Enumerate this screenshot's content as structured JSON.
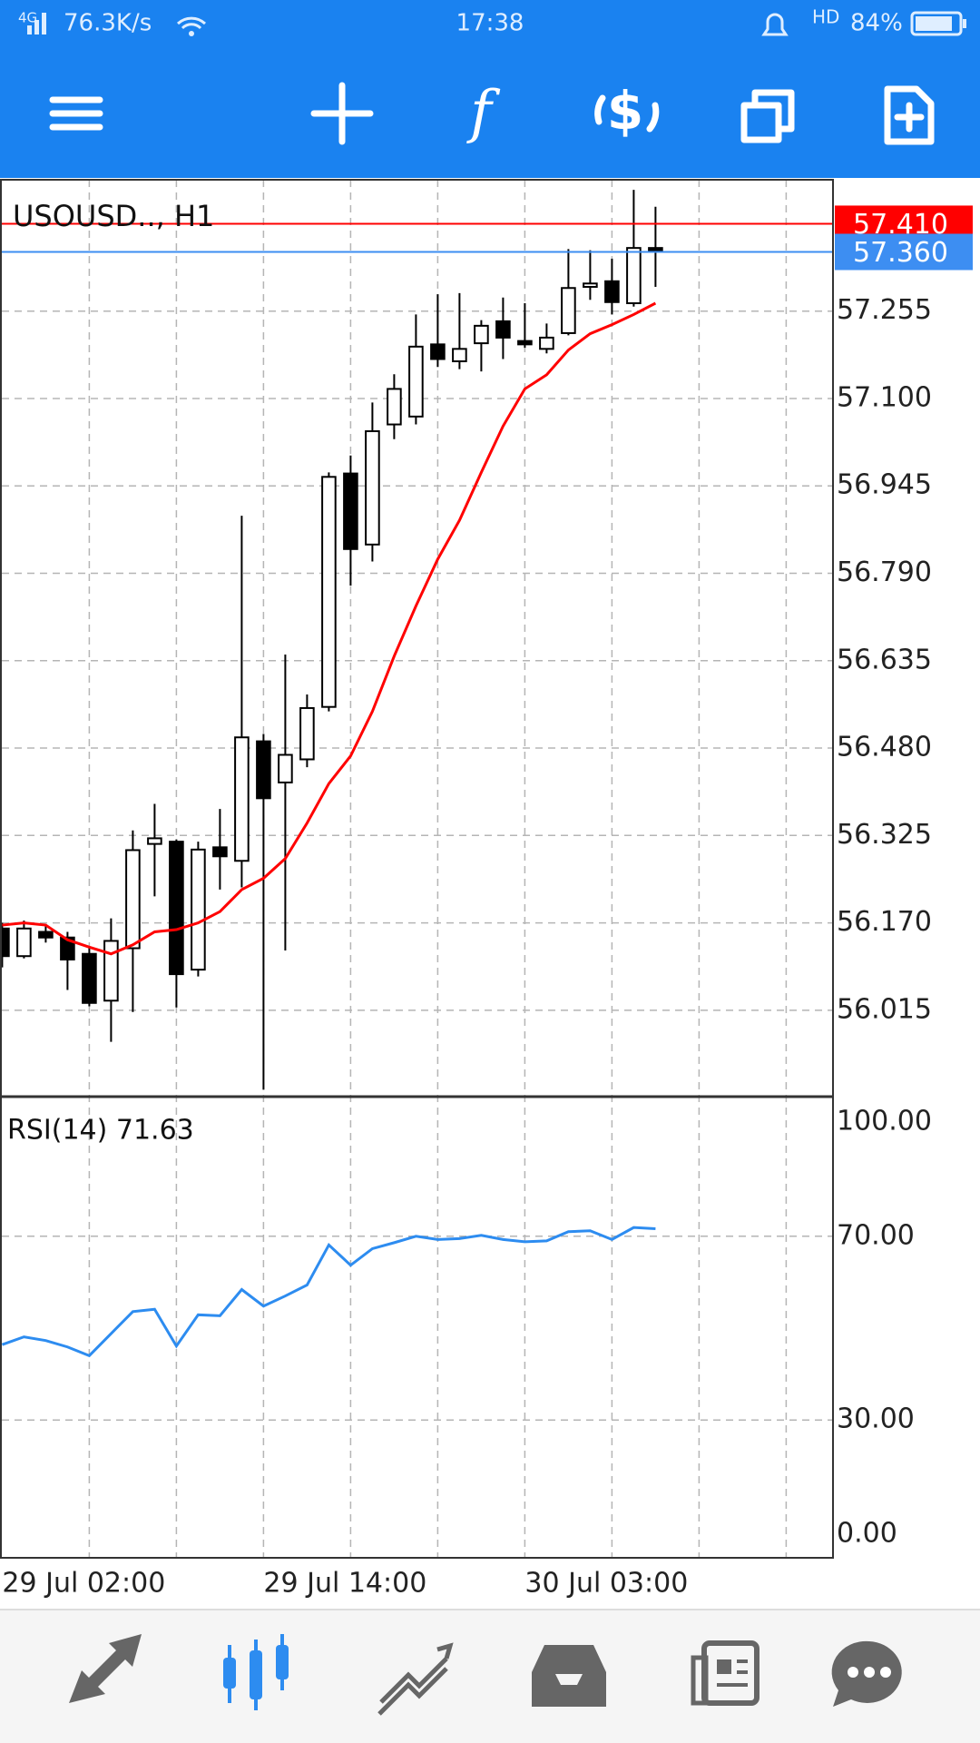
{
  "status_bar": {
    "network": "4G",
    "speed": "76.3K/s",
    "time": "17:38",
    "hd": "HD",
    "battery": "84%"
  },
  "chart_data": [
    {
      "type": "candlestick",
      "title": "USOUSD.., H1",
      "categories": [
        "29 Jul 02:00",
        null,
        null,
        null,
        null,
        null,
        null,
        null,
        null,
        null,
        null,
        null,
        "29 Jul 14:00",
        null,
        null,
        null,
        null,
        null,
        null,
        null,
        null,
        null,
        null,
        null,
        "30 Jul 03:00",
        null,
        null,
        null,
        null,
        null,
        null
      ],
      "open": [
        56.16,
        56.111,
        56.154,
        56.144,
        56.115,
        56.032,
        56.125,
        56.31,
        56.314,
        56.087,
        56.304,
        56.28,
        56.492,
        56.419,
        56.46,
        56.553,
        56.967,
        56.841,
        57.054,
        57.068,
        57.196,
        57.166,
        57.198,
        57.237,
        57.202,
        57.188,
        57.216,
        57.298,
        57.308,
        57.269,
        57.367
      ],
      "high": [
        56.17,
        56.174,
        56.164,
        56.154,
        56.127,
        56.178,
        56.334,
        56.381,
        56.318,
        56.314,
        56.372,
        56.892,
        56.505,
        56.646,
        56.575,
        56.969,
        56.999,
        57.093,
        57.143,
        57.249,
        57.285,
        57.287,
        57.239,
        57.279,
        57.269,
        57.233,
        57.365,
        57.363,
        57.348,
        57.47,
        57.44
      ],
      "low": [
        56.091,
        56.107,
        56.135,
        56.051,
        56.022,
        55.959,
        56.012,
        56.217,
        56.02,
        56.075,
        56.229,
        56.233,
        55.874,
        56.121,
        56.446,
        56.545,
        56.768,
        56.811,
        57.028,
        57.054,
        57.156,
        57.152,
        57.148,
        57.17,
        57.19,
        57.18,
        57.212,
        57.275,
        57.249,
        57.263,
        57.298
      ],
      "close": [
        56.111,
        56.16,
        56.144,
        56.105,
        56.028,
        56.138,
        56.299,
        56.32,
        56.079,
        56.3,
        56.288,
        56.499,
        56.391,
        56.468,
        56.551,
        56.961,
        56.833,
        57.042,
        57.117,
        57.192,
        57.17,
        57.188,
        57.229,
        57.208,
        57.196,
        57.208,
        57.296,
        57.304,
        57.271,
        57.367,
        57.36
      ],
      "up_color": "#ffffff",
      "down_color": "#000000",
      "moving_average": {
        "color": "#ff0000",
        "values": [
          56.166,
          56.17,
          56.166,
          56.14,
          56.127,
          56.115,
          56.131,
          56.154,
          56.158,
          56.17,
          56.19,
          56.229,
          56.249,
          56.284,
          56.347,
          56.417,
          56.466,
          56.545,
          56.643,
          56.732,
          56.815,
          56.884,
          56.969,
          57.051,
          57.117,
          57.142,
          57.186,
          57.215,
          57.231,
          57.249,
          57.269
        ]
      },
      "price_lines": [
        {
          "value": 57.41,
          "label": "57.410",
          "color": "#ff0000"
        },
        {
          "value": 57.36,
          "label": "57.360",
          "color": "#3d8ef2"
        }
      ],
      "ylim": [
        55.865,
        57.488
      ],
      "yticks": [
        57.255,
        {
          "value": 57.1,
          "label": "57.100"
        },
        56.945,
        {
          "value": 56.79,
          "label": "56.790"
        },
        56.635,
        {
          "value": 56.48,
          "label": "56.480"
        },
        56.325,
        {
          "value": 56.17,
          "label": "56.170"
        },
        56.015
      ],
      "grid": true
    },
    {
      "type": "line",
      "title": "RSI(14) 71.63",
      "color": "#2d8cf0",
      "values": [
        46.4,
        48.1,
        47.3,
        45.9,
        44.0,
        48.8,
        53.6,
        54.1,
        46.1,
        52.9,
        52.7,
        58.4,
        54.8,
        57.0,
        59.4,
        68.1,
        63.7,
        67.3,
        68.6,
        70.0,
        69.3,
        69.5,
        70.2,
        69.3,
        68.8,
        69.0,
        71.0,
        71.2,
        69.3,
        71.9,
        71.63
      ],
      "ylim": [
        0,
        100
      ],
      "yticks": [
        {
          "value": 100,
          "label": "100.00"
        },
        {
          "value": 70,
          "label": "70.00"
        },
        {
          "value": 30,
          "label": "30.00"
        },
        {
          "value": 0,
          "label": "0.00"
        }
      ],
      "grid": true
    }
  ]
}
